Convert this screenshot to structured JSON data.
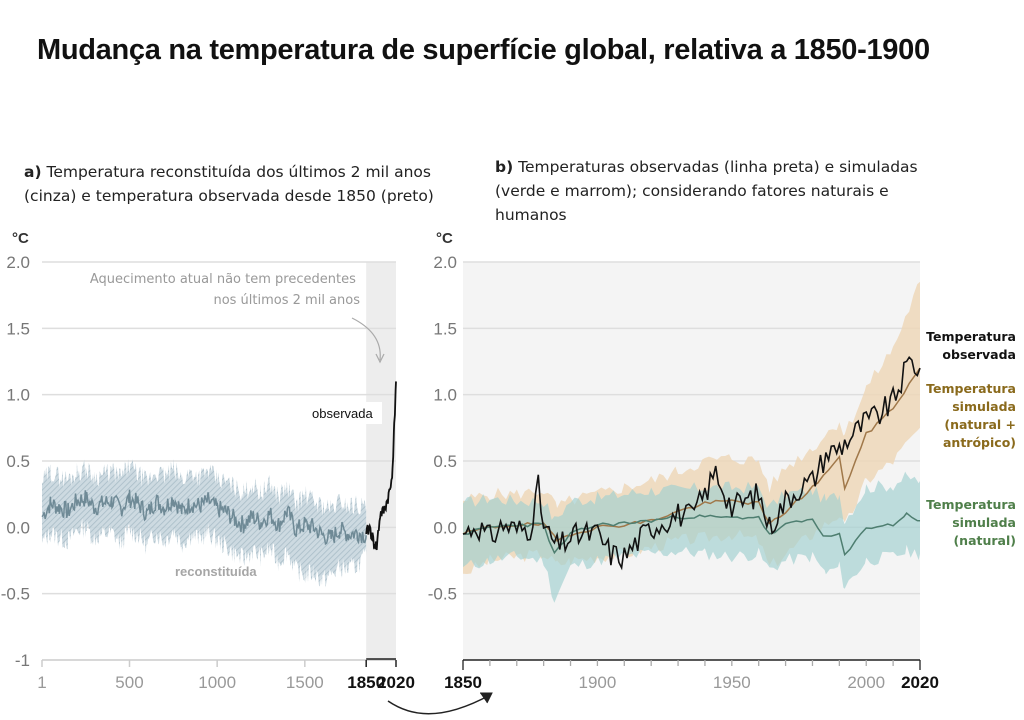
{
  "title": "Mudança na temperatura de superfície global, relativa a 1850-1900",
  "panel_a": {
    "label": "a)",
    "description": "Temperatura reconstituída dos últimos 2 mil anos (cinza) e temperatura observada desde 1850 (preto)"
  },
  "panel_b": {
    "label": "b)",
    "description": "Temperaturas observadas (linha preta) e simuladas (verde e marrom); considerando fatores naturais e humanos"
  },
  "legend": {
    "observed": "Temperatura observada",
    "simulated_anthropogenic": "Temperatura simulada (natural + antrópico)",
    "simulated_natural": "Temperatura simulada (natural)"
  },
  "colors": {
    "reconstructed": "#6f8a96",
    "reconstructed_band": "#b9ccd6",
    "observed": "#111111",
    "anthropogenic_line": "#a0784a",
    "anthropogenic_band": "#edd7b8",
    "natural_line": "#4e7e70",
    "natural_band": "#9fcfcf",
    "panel_bg": "#f3f3f3",
    "legend_anthropogenic": "#8a6a1c",
    "legend_natural": "#4f7f4a"
  },
  "chart_data": [
    {
      "type": "line",
      "title": "Temperatura reconstituída dos últimos 2 mil anos (cinza) e temperatura observada desde 1850 (preto)",
      "ylabel": "°C",
      "xlabel": "",
      "ylim": [
        -1,
        2
      ],
      "xlim": [
        1,
        2020
      ],
      "y_ticks": [
        "2.0",
        "1.5",
        "1.0",
        "0.5",
        "0.0",
        "-0.5",
        "-1"
      ],
      "y_tick_values": [
        2.0,
        1.5,
        1.0,
        0.5,
        0.0,
        -0.5,
        -1
      ],
      "x_ticks": [
        "1",
        "500",
        "1000",
        "1500",
        "1850",
        "2020"
      ],
      "x_tick_values": [
        1,
        500,
        1000,
        1500,
        1850,
        2020
      ],
      "grid": true,
      "highlight_range": [
        1850,
        2020
      ],
      "annotation": "Aquecimento atual não tem precedentes nos últimos 2 mil anos",
      "series": [
        {
          "name": "reconstituída",
          "x": [
            1,
            50,
            100,
            150,
            200,
            250,
            300,
            350,
            400,
            450,
            500,
            550,
            600,
            650,
            700,
            750,
            800,
            850,
            900,
            950,
            1000,
            1050,
            1100,
            1150,
            1200,
            1250,
            1300,
            1350,
            1400,
            1450,
            1500,
            1550,
            1600,
            1650,
            1700,
            1750,
            1800,
            1850
          ],
          "values": [
            0.08,
            0.18,
            0.15,
            0.12,
            0.2,
            0.22,
            0.15,
            0.18,
            0.2,
            0.14,
            0.22,
            0.18,
            0.1,
            0.2,
            0.15,
            0.22,
            0.12,
            0.18,
            0.16,
            0.2,
            0.14,
            0.12,
            0.06,
            0.02,
            0.08,
            0.04,
            0.1,
            0.02,
            0.12,
            -0.02,
            0.02,
            0.0,
            -0.06,
            -0.08,
            -0.02,
            -0.05,
            -0.04,
            -0.06
          ],
          "band_low": [
            -0.12,
            -0.04,
            -0.08,
            -0.1,
            -0.02,
            0.0,
            -0.08,
            -0.05,
            -0.04,
            -0.12,
            -0.02,
            -0.06,
            -0.14,
            -0.04,
            -0.1,
            -0.02,
            -0.12,
            -0.06,
            -0.08,
            -0.04,
            -0.1,
            -0.14,
            -0.2,
            -0.24,
            -0.18,
            -0.22,
            -0.16,
            -0.26,
            -0.18,
            -0.32,
            -0.36,
            -0.34,
            -0.4,
            -0.36,
            -0.3,
            -0.32,
            -0.28,
            -0.22
          ],
          "band_high": [
            0.34,
            0.42,
            0.38,
            0.36,
            0.42,
            0.44,
            0.38,
            0.4,
            0.42,
            0.38,
            0.46,
            0.4,
            0.34,
            0.42,
            0.38,
            0.44,
            0.36,
            0.42,
            0.38,
            0.42,
            0.36,
            0.34,
            0.3,
            0.26,
            0.32,
            0.26,
            0.32,
            0.24,
            0.3,
            0.18,
            0.24,
            0.2,
            0.16,
            0.14,
            0.2,
            0.16,
            0.18,
            0.14
          ]
        },
        {
          "name": "observada",
          "x": [
            1850,
            1870,
            1890,
            1910,
            1930,
            1950,
            1970,
            1990,
            2000,
            2010,
            2020
          ],
          "values": [
            -0.05,
            0.0,
            -0.1,
            -0.15,
            0.1,
            0.12,
            0.2,
            0.3,
            0.45,
            0.75,
            1.1
          ]
        }
      ],
      "labels": [
        "observada",
        "reconstituída"
      ]
    },
    {
      "type": "line",
      "title": "Temperaturas observadas (linha preta) e simuladas (verde e marrom); considerando fatores naturais e humanos",
      "ylabel": "°C",
      "xlabel": "",
      "ylim": [
        -1,
        2
      ],
      "xlim": [
        1850,
        2020
      ],
      "y_ticks": [
        "2.0",
        "1.5",
        "1.0",
        "0.5",
        "0.0",
        "-0.5"
      ],
      "y_tick_values": [
        2.0,
        1.5,
        1.0,
        0.5,
        0.0,
        -0.5
      ],
      "x_ticks": [
        "1850",
        "1900",
        "1950",
        "2000",
        "2020"
      ],
      "x_tick_values": [
        1850,
        1900,
        1950,
        2000,
        2020
      ],
      "grid": true,
      "legend_position": "right",
      "series": [
        {
          "name": "Temperatura observada",
          "x": [
            1850,
            1855,
            1860,
            1865,
            1870,
            1875,
            1878,
            1880,
            1885,
            1890,
            1895,
            1900,
            1905,
            1910,
            1915,
            1920,
            1925,
            1930,
            1935,
            1940,
            1944,
            1950,
            1955,
            1960,
            1964,
            1970,
            1975,
            1980,
            1985,
            1990,
            1995,
            2000,
            2005,
            2010,
            2016,
            2020
          ],
          "values": [
            -0.05,
            0.02,
            -0.08,
            0.02,
            -0.02,
            0.0,
            0.3,
            0.0,
            -0.15,
            -0.08,
            -0.05,
            -0.05,
            -0.2,
            -0.22,
            -0.1,
            0.0,
            0.05,
            0.1,
            0.08,
            0.25,
            0.42,
            0.15,
            0.2,
            0.25,
            0.0,
            0.2,
            0.3,
            0.35,
            0.55,
            0.6,
            0.7,
            0.8,
            0.85,
            0.95,
            1.25,
            1.2
          ]
        },
        {
          "name": "Temperatura simulada (natural + antrópico)",
          "x": [
            1850,
            1860,
            1870,
            1880,
            1885,
            1890,
            1900,
            1910,
            1920,
            1930,
            1940,
            1950,
            1960,
            1964,
            1970,
            1980,
            1990,
            1992,
            2000,
            2010,
            2020
          ],
          "values": [
            -0.05,
            0.0,
            0.02,
            0.02,
            -0.1,
            -0.05,
            0.0,
            0.02,
            0.05,
            0.12,
            0.18,
            0.2,
            0.18,
            0.02,
            0.12,
            0.3,
            0.52,
            0.3,
            0.7,
            0.9,
            1.2
          ],
          "band_low": [
            -0.35,
            -0.25,
            -0.22,
            -0.2,
            -0.28,
            -0.25,
            -0.22,
            -0.2,
            -0.15,
            -0.1,
            -0.08,
            -0.05,
            -0.1,
            -0.3,
            -0.2,
            -0.05,
            0.1,
            0.0,
            0.35,
            0.5,
            0.75
          ],
          "band_high": [
            0.2,
            0.25,
            0.25,
            0.28,
            0.15,
            0.2,
            0.25,
            0.3,
            0.35,
            0.42,
            0.5,
            0.52,
            0.5,
            0.3,
            0.45,
            0.6,
            0.8,
            0.7,
            1.05,
            1.35,
            1.85
          ]
        },
        {
          "name": "Temperatura simulada (natural)",
          "x": [
            1850,
            1860,
            1870,
            1880,
            1884,
            1890,
            1900,
            1910,
            1920,
            1930,
            1940,
            1950,
            1960,
            1964,
            1970,
            1980,
            1985,
            1990,
            1992,
            2000,
            2010,
            2015,
            2020
          ],
          "values": [
            -0.05,
            0.0,
            0.02,
            0.02,
            -0.2,
            -0.05,
            0.02,
            0.03,
            0.05,
            0.08,
            0.08,
            0.07,
            0.08,
            -0.06,
            0.02,
            0.06,
            -0.08,
            -0.05,
            -0.22,
            0.0,
            0.02,
            0.1,
            0.05
          ],
          "band_low": [
            -0.3,
            -0.25,
            -0.22,
            -0.25,
            -0.55,
            -0.3,
            -0.25,
            -0.22,
            -0.2,
            -0.18,
            -0.2,
            -0.22,
            -0.2,
            -0.32,
            -0.25,
            -0.22,
            -0.35,
            -0.3,
            -0.45,
            -0.25,
            -0.22,
            -0.18,
            -0.2
          ],
          "band_high": [
            0.18,
            0.22,
            0.2,
            0.2,
            0.05,
            0.2,
            0.22,
            0.25,
            0.28,
            0.28,
            0.3,
            0.3,
            0.3,
            0.15,
            0.25,
            0.28,
            0.2,
            0.25,
            0.05,
            0.3,
            0.32,
            0.38,
            0.35
          ]
        }
      ]
    }
  ]
}
